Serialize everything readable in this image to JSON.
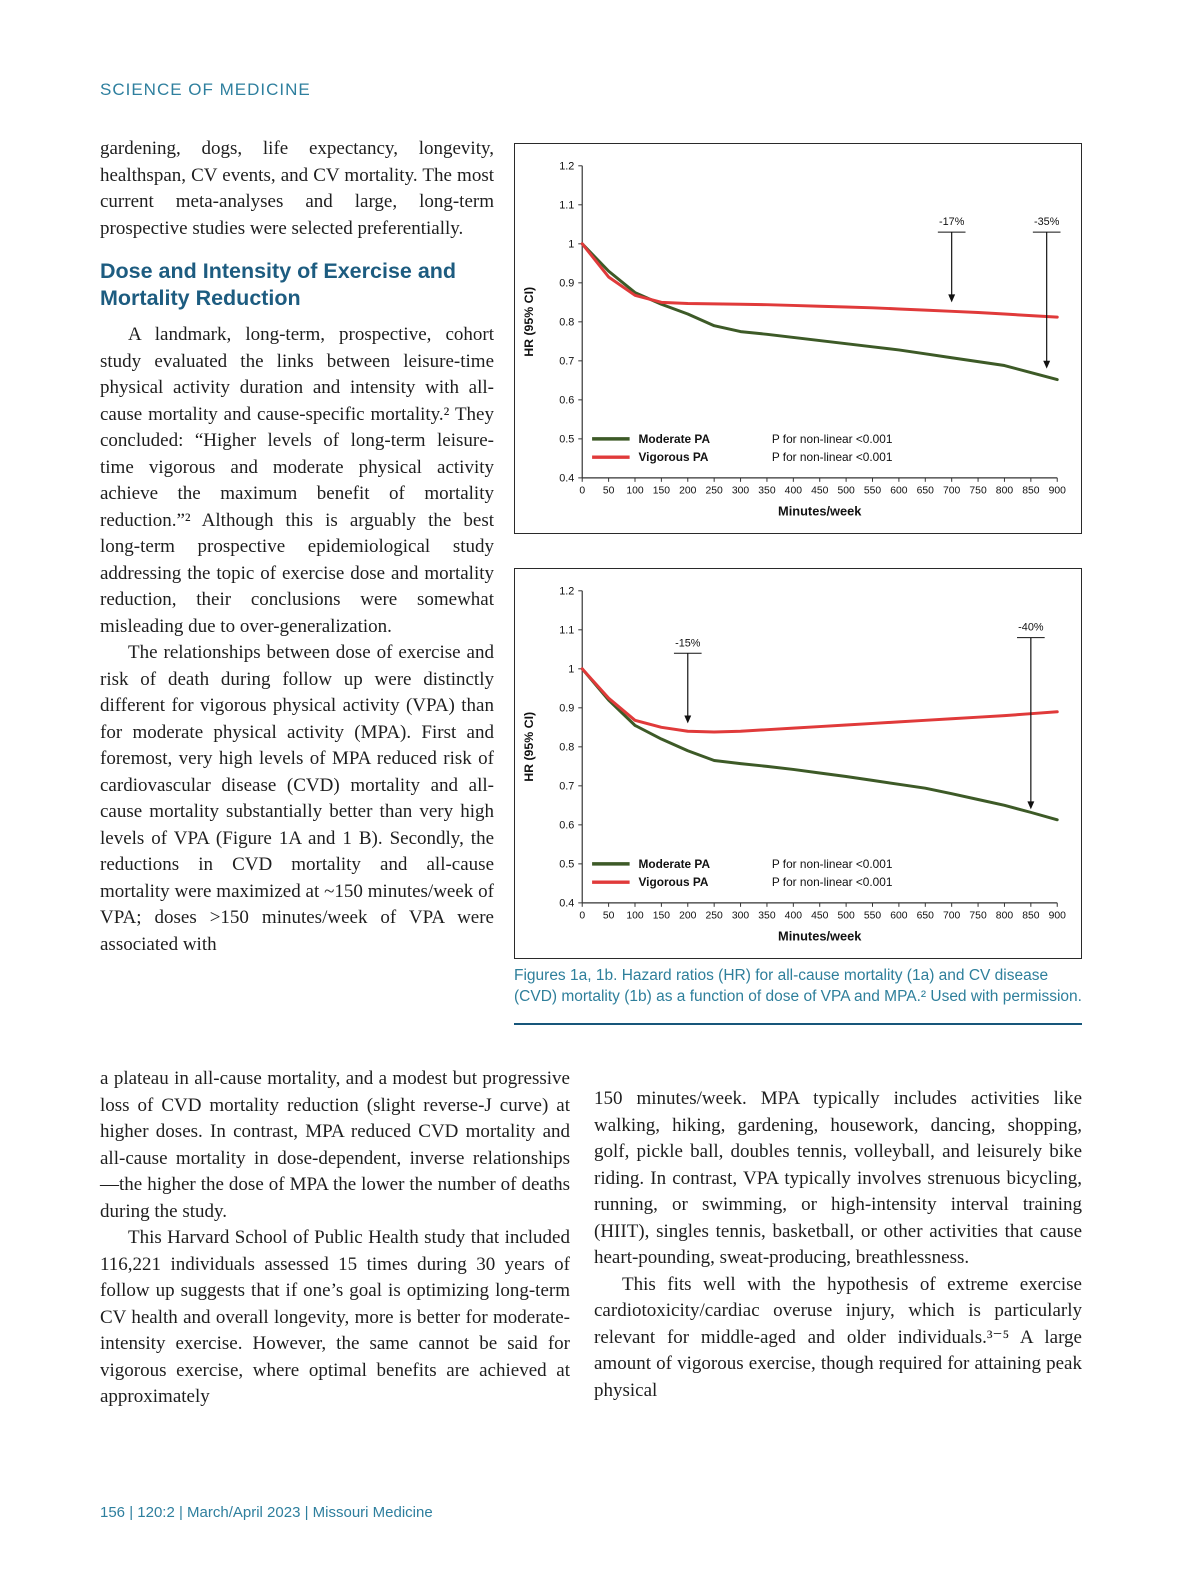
{
  "page": {
    "kicker": "SCIENCE OF MEDICINE",
    "footer": "156 | 120:2 | March/April 2023 | Missouri Medicine"
  },
  "colors": {
    "accent_teal": "#2e7f9e",
    "heading_blue": "#1d5c80",
    "moderate_green": "#3d5a27",
    "vigorous_red": "#e03a3a"
  },
  "article": {
    "heading": "Dose and Intensity of Exercise and Mortality Reduction",
    "col1": {
      "p1": "gardening, dogs, life expectancy, longevity, healthspan, CV events, and CV mortality. The most current meta-analyses and large, long-term prospective studies were selected preferentially.",
      "p2": "A landmark, long-term, prospective, cohort study evaluated the links between leisure-time physical activity duration and intensity with all-cause mortality and cause-specific mortality.²  They concluded: “Higher levels of long-term leisure-time vigorous and moderate physical activity achieve the maximum benefit of mortality reduction.”² Although this is arguably the best long-term prospective epidemiological study addressing the topic of exercise dose and mortality reduction, their conclusions were somewhat misleading due to over-generalization.",
      "p3a": "The relationships between dose of exercise and risk of death during follow up were distinctly different for vigorous physical activity (VPA) than for moderate physical activity (MPA). First and foremost, very high levels of MPA reduced risk of cardiovascular disease (CVD) mortality and all-cause mortality substantially better than very high levels of VPA (Figure 1A and 1 B). Secondly, the reductions in CVD mortality and all-cause mortality were maximized at ~150 minutes/week of VPA; doses >150 minutes/week of VPA were associated with"
    },
    "col1_bottom": {
      "p3b": "a plateau in all-cause mortality, and a modest but progressive loss of CVD mortality reduction (slight reverse-J curve) at higher doses. In contrast, MPA reduced CVD mortality and all-cause mortality in dose-dependent, inverse relationships—the higher the dose of MPA the lower the number of deaths during the study.",
      "p4": "This Harvard School of Public Health study that included 116,221 individuals assessed 15 times during 30 years of follow up suggests that if one’s goal is optimizing long-term CV health and overall longevity, more is better for moderate-intensity exercise. However, the same cannot be said for vigorous exercise, where optimal benefits are achieved at approximately"
    },
    "col2": {
      "p5": "150 minutes/week. MPA typically includes activities like walking, hiking, gardening, housework, dancing, shopping, golf, pickle ball, doubles tennis, volleyball, and leisurely bike riding. In contrast, VPA typically involves strenuous bicycling, running, or swimming, or high-intensity interval training (HIIT), singles tennis, basketball, or other activities that cause heart-pounding, sweat-producing, breathlessness.",
      "p6": "This fits well with the hypothesis of extreme exercise cardiotoxicity/cardiac overuse injury, which is particularly relevant for middle-aged and older individuals.³⁻⁵  A large amount of vigorous exercise, though required for attaining peak physical"
    },
    "caption": "Figures 1a, 1b.  Hazard ratios (HR) for all-cause mortality (1a) and CV disease (CVD) mortality (1b) as a function of dose of VPA and MPA.² Used with permission."
  },
  "chart_data": [
    {
      "id": "fig1a",
      "type": "line",
      "title": "Figure 1a: Hazard ratios for all-cause mortality by dose of physical activity",
      "ylabel": "HR (95% CI)",
      "xlabel": "Minutes/week",
      "ylim": [
        0.4,
        1.2
      ],
      "xlim": [
        0,
        900
      ],
      "yticks": [
        0.4,
        0.5,
        0.6,
        0.7,
        0.8,
        0.9,
        1,
        1.1,
        1.2
      ],
      "xticks": [
        0,
        50,
        100,
        150,
        200,
        250,
        300,
        350,
        400,
        450,
        500,
        550,
        600,
        650,
        700,
        750,
        800,
        850,
        900
      ],
      "x": [
        0,
        50,
        100,
        150,
        200,
        250,
        300,
        350,
        400,
        450,
        500,
        550,
        600,
        650,
        700,
        750,
        800,
        850,
        900
      ],
      "series": [
        {
          "name": "Moderate PA",
          "color": "#3d5a27",
          "p_label": "P for non-linear <0.001",
          "values": [
            1.0,
            0.93,
            0.875,
            0.845,
            0.82,
            0.79,
            0.775,
            0.768,
            0.76,
            0.752,
            0.744,
            0.736,
            0.728,
            0.718,
            0.708,
            0.698,
            0.688,
            0.67,
            0.652
          ]
        },
        {
          "name": "Vigorous PA",
          "color": "#e03a3a",
          "p_label": "P for non-linear <0.001",
          "values": [
            1.0,
            0.915,
            0.868,
            0.85,
            0.847,
            0.846,
            0.845,
            0.844,
            0.842,
            0.84,
            0.838,
            0.836,
            0.833,
            0.83,
            0.827,
            0.824,
            0.82,
            0.816,
            0.812
          ]
        }
      ],
      "annotations": [
        {
          "label": "-17%",
          "x": 700,
          "from": 1.03,
          "to": 0.85
        },
        {
          "label": "-35%",
          "x": 880,
          "from": 1.03,
          "to": 0.68
        }
      ],
      "legend_position": "bottom-left",
      "grid": false
    },
    {
      "id": "fig1b",
      "type": "line",
      "title": "Figure 1b: Hazard ratios for CVD mortality by dose of physical activity",
      "ylabel": "HR (95% CI)",
      "xlabel": "Minutes/week",
      "ylim": [
        0.4,
        1.2
      ],
      "xlim": [
        0,
        900
      ],
      "yticks": [
        0.4,
        0.5,
        0.6,
        0.7,
        0.8,
        0.9,
        1,
        1.1,
        1.2
      ],
      "xticks": [
        0,
        50,
        100,
        150,
        200,
        250,
        300,
        350,
        400,
        450,
        500,
        550,
        600,
        650,
        700,
        750,
        800,
        850,
        900
      ],
      "x": [
        0,
        50,
        100,
        150,
        200,
        250,
        300,
        350,
        400,
        450,
        500,
        550,
        600,
        650,
        700,
        750,
        800,
        850,
        900
      ],
      "series": [
        {
          "name": "Moderate PA",
          "color": "#3d5a27",
          "p_label": "P for non-linear <0.001",
          "values": [
            1.0,
            0.92,
            0.855,
            0.82,
            0.79,
            0.765,
            0.757,
            0.75,
            0.742,
            0.733,
            0.724,
            0.714,
            0.704,
            0.694,
            0.68,
            0.665,
            0.65,
            0.632,
            0.613
          ]
        },
        {
          "name": "Vigorous PA",
          "color": "#e03a3a",
          "p_label": "P for non-linear <0.001",
          "values": [
            1.0,
            0.925,
            0.868,
            0.85,
            0.84,
            0.838,
            0.84,
            0.844,
            0.848,
            0.852,
            0.856,
            0.86,
            0.864,
            0.868,
            0.872,
            0.876,
            0.88,
            0.885,
            0.89
          ]
        }
      ],
      "annotations": [
        {
          "label": "-15%",
          "x": 200,
          "from": 1.04,
          "to": 0.86
        },
        {
          "label": "-40%",
          "x": 850,
          "from": 1.08,
          "to": 0.64
        }
      ],
      "legend_position": "bottom-left",
      "grid": false
    }
  ]
}
